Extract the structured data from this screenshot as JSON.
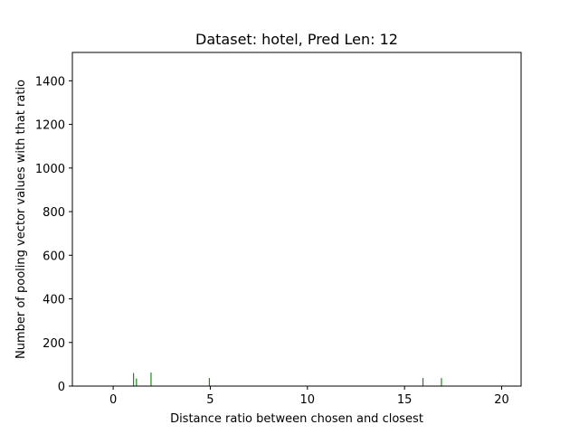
{
  "chart_data": {
    "type": "bar",
    "title": "Dataset: hotel, Pred Len: 12",
    "xlabel": "Distance ratio between chosen and closest",
    "ylabel": "Number of pooling vector values with that ratio",
    "xlim": [
      -2.1,
      21.0
    ],
    "ylim": [
      0,
      1530
    ],
    "xticks": [
      0,
      5,
      10,
      15,
      20
    ],
    "yticks": [
      0,
      200,
      400,
      600,
      800,
      1000,
      1200,
      1400
    ],
    "grid": false,
    "bar_color": "#008000",
    "bar_width": 0.05,
    "x": [
      1.05,
      1.2,
      1.95,
      4.95,
      15.95,
      16.9
    ],
    "values": [
      60,
      35,
      62,
      37,
      37,
      37
    ]
  }
}
